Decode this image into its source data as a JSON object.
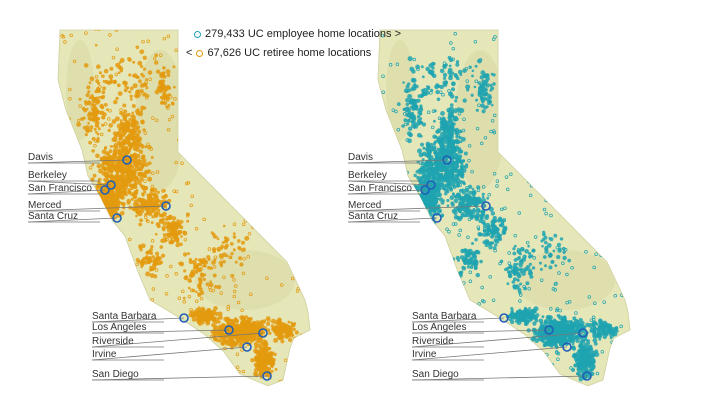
{
  "legend": {
    "employee_text": "279,433 UC employee home locations",
    "employee_arrow": ">",
    "employee_color": "#1fa3b0",
    "retiree_text": "67,626 UC retiree home locations",
    "retiree_arrow": "<",
    "retiree_color": "#e39a0e"
  },
  "colors": {
    "land": "#e6e7b8",
    "land_shade": "#d8d8a4",
    "campus_marker": "#1f5fb8",
    "leader_line": "#777777"
  },
  "maps": [
    {
      "name": "retiree-map",
      "point_color": "#e39a0e"
    },
    {
      "name": "employee-map",
      "point_color": "#1fa3b0"
    }
  ],
  "campuses": [
    {
      "name": "Davis"
    },
    {
      "name": "Berkeley"
    },
    {
      "name": "San Francisco"
    },
    {
      "name": "Merced"
    },
    {
      "name": "Santa Cruz"
    },
    {
      "name": "Santa Barbara"
    },
    {
      "name": "Los Angeles"
    },
    {
      "name": "Riverside"
    },
    {
      "name": "Irvine"
    },
    {
      "name": "San Diego"
    }
  ]
}
